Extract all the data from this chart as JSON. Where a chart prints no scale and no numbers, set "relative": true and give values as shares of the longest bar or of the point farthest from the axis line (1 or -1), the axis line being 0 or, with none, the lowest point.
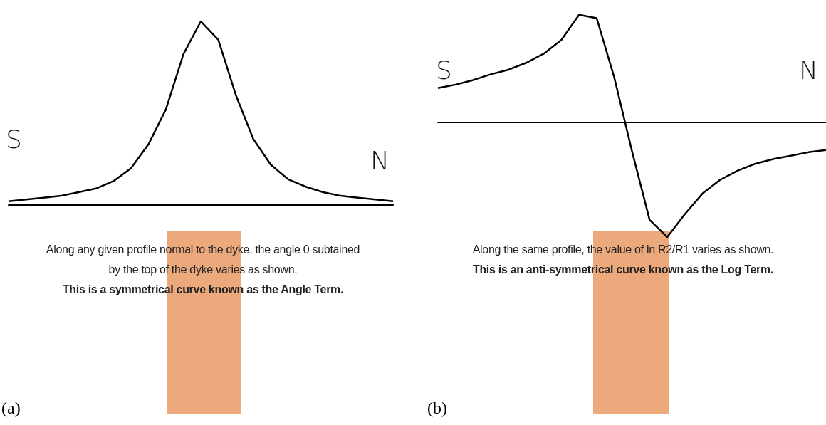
{
  "chart_data": [
    {
      "type": "line",
      "title": "(a)",
      "relative": true,
      "marker": "none",
      "color": "#000000",
      "categories": [
        null,
        null,
        null,
        null,
        null,
        null,
        null,
        null,
        null,
        null,
        null,
        null,
        null,
        null,
        null,
        null,
        null,
        null,
        null,
        null,
        null,
        null,
        null
      ],
      "values": [
        0.02,
        0.03,
        0.04,
        0.05,
        0.07,
        0.09,
        0.13,
        0.2,
        0.33,
        0.52,
        0.82,
        1.0,
        0.9,
        0.6,
        0.36,
        0.22,
        0.14,
        0.1,
        0.07,
        0.05,
        0.04,
        0.03,
        0.02
      ],
      "annotations": [
        "S",
        "N",
        "Along any given profile normal to the dyke, the angle 0 subtained",
        "by the top of the dyke varies as shown.",
        "This is a symmetrical curve known as the Angle Term."
      ]
    },
    {
      "type": "line",
      "title": "(b)",
      "relative": true,
      "marker": "none",
      "color": "#000000",
      "categories": [
        null,
        null,
        null,
        null,
        null,
        null,
        null,
        null,
        null,
        null,
        null,
        null,
        null,
        null,
        null,
        null,
        null,
        null,
        null,
        null,
        null,
        null,
        null
      ],
      "values": [
        0.3,
        0.33,
        0.37,
        0.42,
        0.46,
        0.52,
        0.6,
        0.72,
        0.94,
        0.91,
        0.39,
        -0.25,
        -0.85,
        -1.0,
        -0.8,
        -0.62,
        -0.5,
        -0.42,
        -0.36,
        -0.32,
        -0.29,
        -0.26,
        -0.24
      ],
      "annotations": [
        "S",
        "N",
        "Along the same profile, the value of ln R2/R1 varies as shown.",
        "This is an anti-symmetrical curve known as the Log Term."
      ]
    }
  ]
}
